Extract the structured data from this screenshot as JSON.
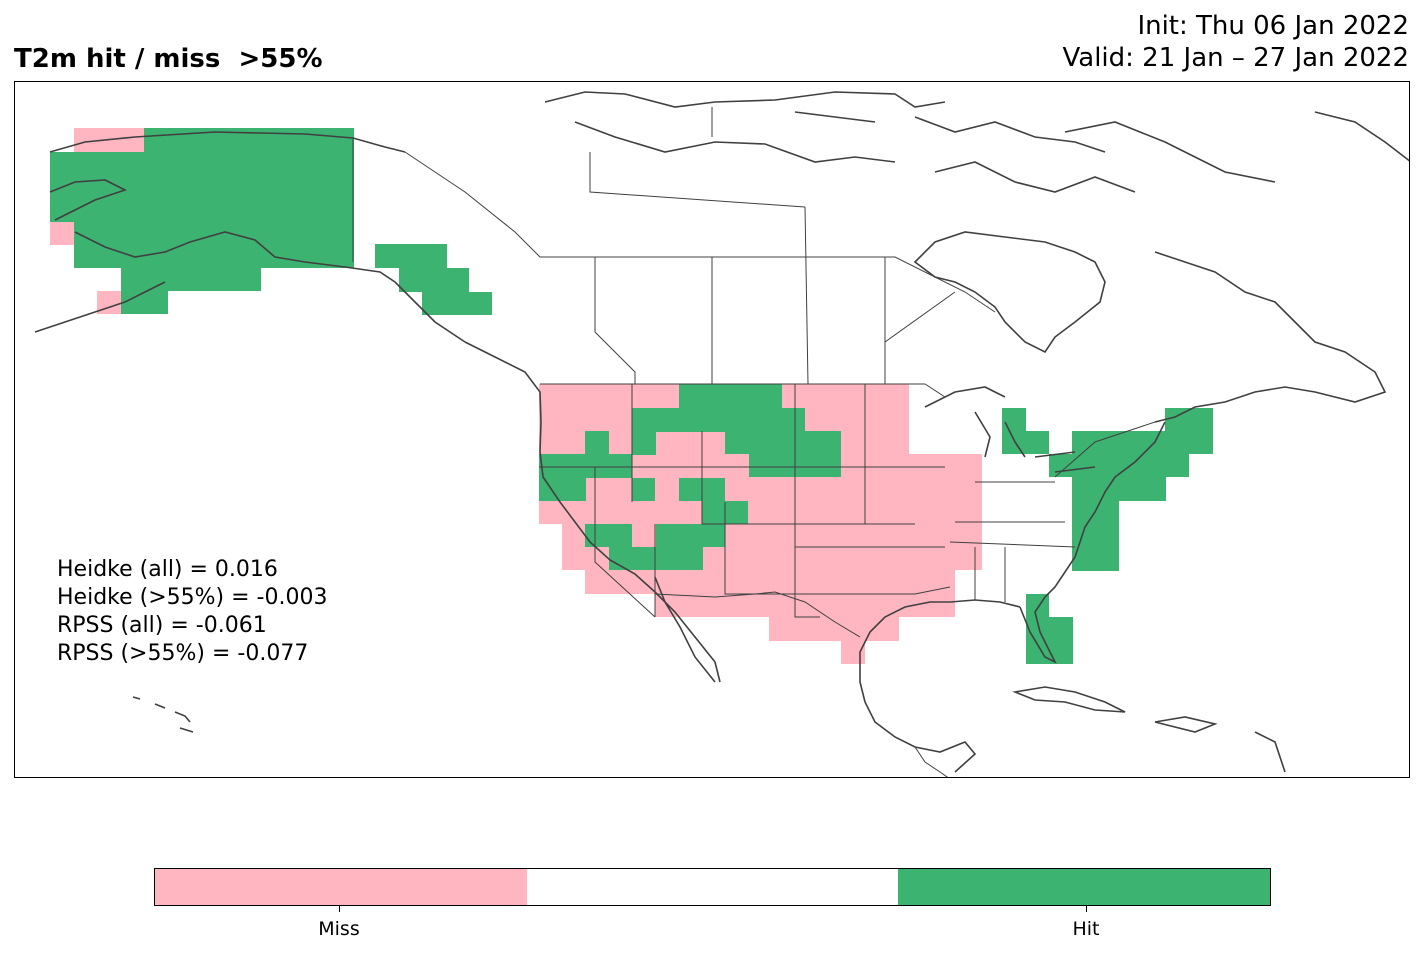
{
  "title": {
    "left": "T2m hit / miss  >55%",
    "init": "Init: Thu 06 Jan 2022",
    "valid": "Valid: 21 Jan – 27 Jan 2022"
  },
  "scores": [
    "Heidke (all) = 0.016",
    "Heidke (>55%) = -0.003",
    "RPSS (all) = -0.061",
    "RPSS (>55%) = -0.077"
  ],
  "colorbar": {
    "segments": [
      {
        "label": "Miss",
        "color": "#ffb6c1"
      },
      {
        "label": "",
        "color": "#ffffff"
      },
      {
        "label": "Hit",
        "color": "#3cb371"
      }
    ],
    "ticks": [
      "Miss",
      "Hit"
    ]
  },
  "colors": {
    "miss": "#ffb6c1",
    "hit": "#3cb371",
    "coast": "#404040"
  }
}
